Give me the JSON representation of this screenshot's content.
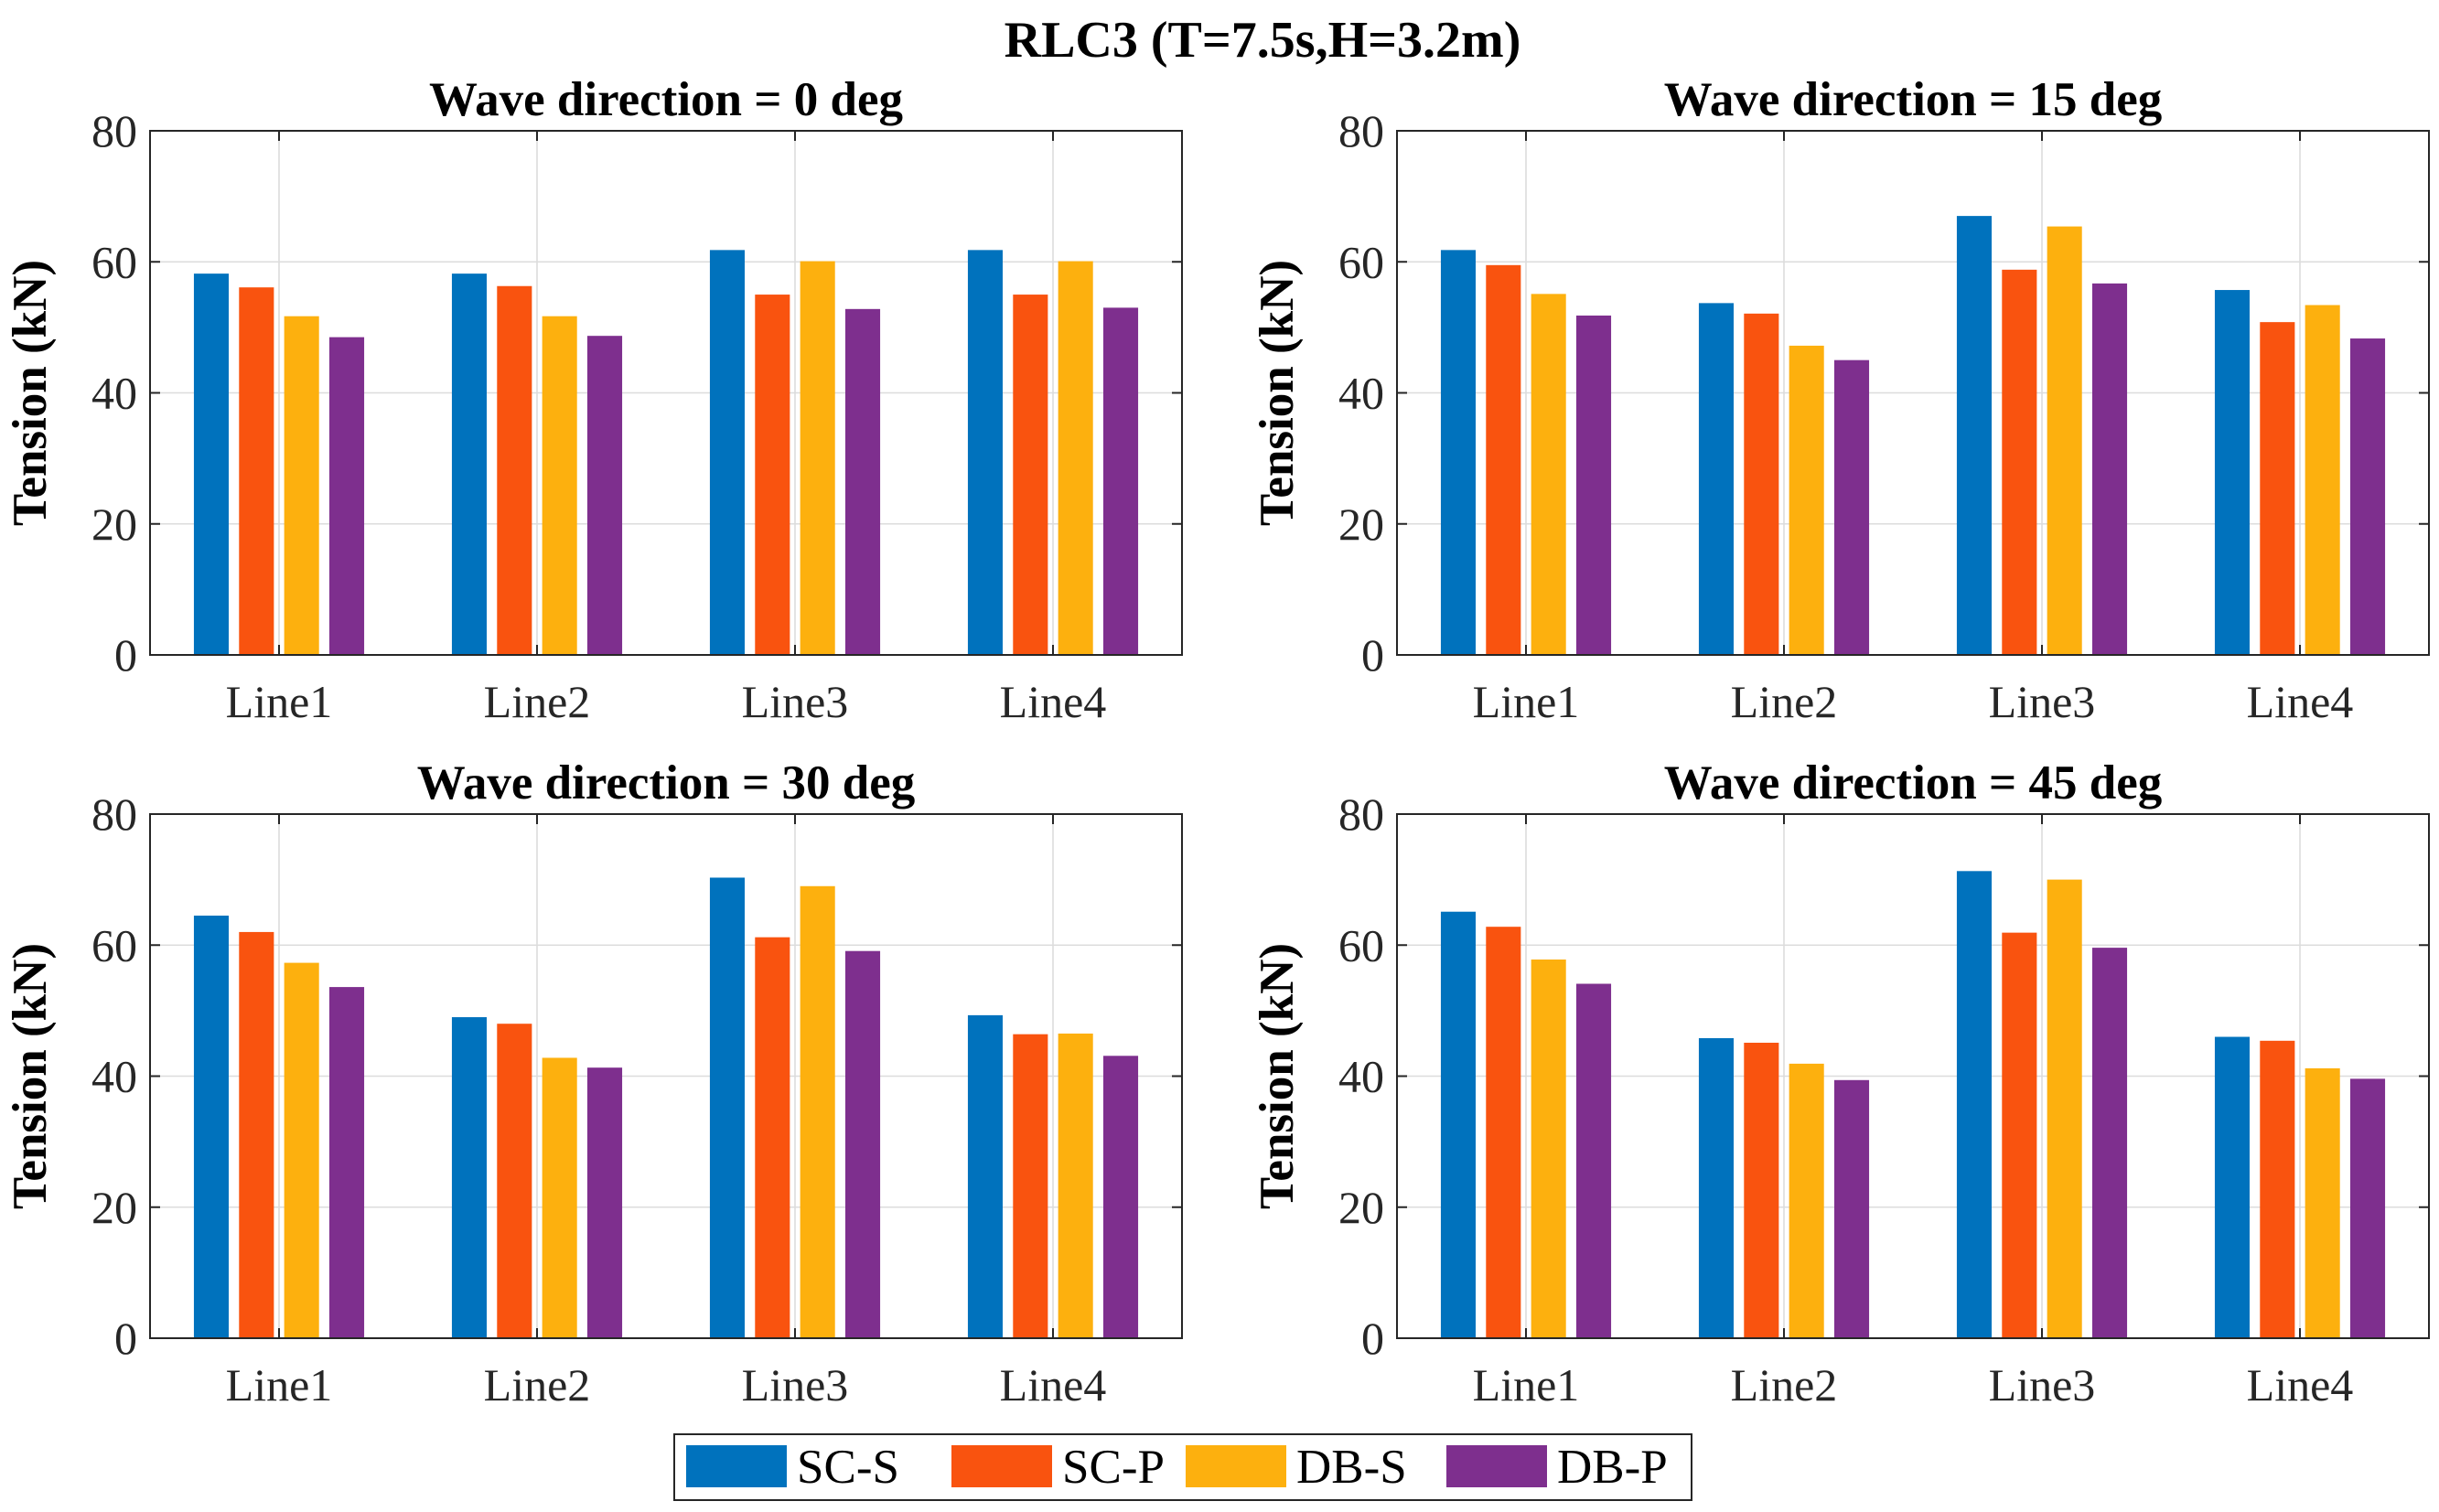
{
  "chart_data": {
    "type": "bar",
    "suptitle": "RLC3 (T=7.5s,H=3.2m)",
    "categories": [
      "Line1",
      "Line2",
      "Line3",
      "Line4"
    ],
    "ylabel": "Tension (kN)",
    "ylim": [
      0,
      80
    ],
    "yticks": [
      0,
      20,
      40,
      60,
      80
    ],
    "grid": true,
    "legend": {
      "position": "bottom-center",
      "entries": [
        {
          "name": "SC-S",
          "color": "#0072BD"
        },
        {
          "name": "SC-P",
          "color": "#F9530F"
        },
        {
          "name": "DB-S",
          "color": "#FDB00E"
        },
        {
          "name": "DB-P",
          "color": "#7E2F8E"
        }
      ]
    },
    "panels": [
      {
        "title": "Wave direction = 0 deg",
        "series": [
          {
            "name": "SC-S",
            "values": [
              58.2,
              58.2,
              61.8,
              61.8
            ]
          },
          {
            "name": "SC-P",
            "values": [
              56.1,
              56.3,
              55.0,
              55.0
            ]
          },
          {
            "name": "DB-S",
            "values": [
              51.7,
              51.7,
              60.1,
              60.1
            ]
          },
          {
            "name": "DB-P",
            "values": [
              48.5,
              48.7,
              52.8,
              53.0
            ]
          }
        ]
      },
      {
        "title": "Wave direction = 15 deg",
        "series": [
          {
            "name": "SC-S",
            "values": [
              61.8,
              53.7,
              67.0,
              55.7
            ]
          },
          {
            "name": "SC-P",
            "values": [
              59.5,
              52.1,
              58.8,
              50.8
            ]
          },
          {
            "name": "DB-S",
            "values": [
              55.1,
              47.2,
              65.4,
              53.4
            ]
          },
          {
            "name": "DB-P",
            "values": [
              51.8,
              45.0,
              56.7,
              48.3
            ]
          }
        ]
      },
      {
        "title": "Wave direction = 30 deg",
        "series": [
          {
            "name": "SC-S",
            "values": [
              64.5,
              49.0,
              70.3,
              49.3
            ]
          },
          {
            "name": "SC-P",
            "values": [
              62.0,
              48.0,
              61.2,
              46.4
            ]
          },
          {
            "name": "DB-S",
            "values": [
              57.3,
              42.8,
              69.0,
              46.5
            ]
          },
          {
            "name": "DB-P",
            "values": [
              53.6,
              41.3,
              59.1,
              43.1
            ]
          }
        ]
      },
      {
        "title": "Wave direction = 45 deg",
        "series": [
          {
            "name": "SC-S",
            "values": [
              65.1,
              45.8,
              71.3,
              46.0
            ]
          },
          {
            "name": "SC-P",
            "values": [
              62.8,
              45.1,
              61.9,
              45.4
            ]
          },
          {
            "name": "DB-S",
            "values": [
              57.8,
              41.9,
              70.0,
              41.2
            ]
          },
          {
            "name": "DB-P",
            "values": [
              54.1,
              39.4,
              59.6,
              39.6
            ]
          }
        ]
      }
    ]
  }
}
